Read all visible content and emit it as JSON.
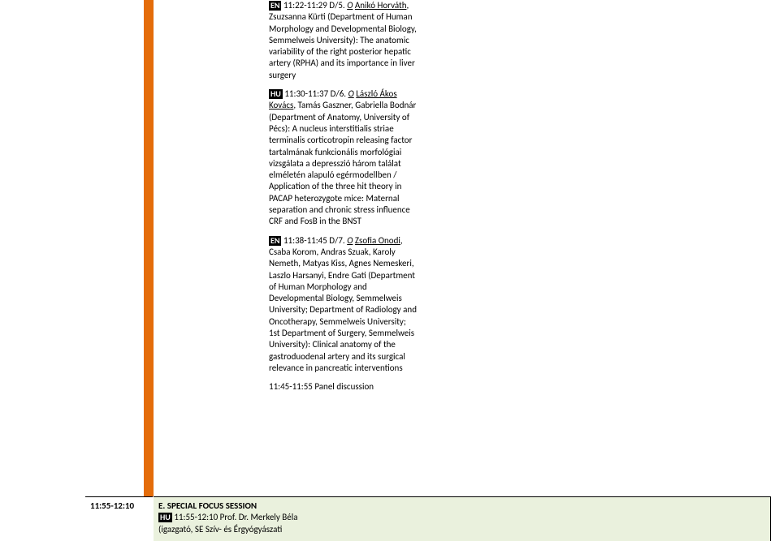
{
  "entry1": {
    "lang": "EN",
    "time_code": "11:22-11:29 D/5.",
    "author_lead_italic": "O",
    "author_lead_underline": "Anikó Horváth",
    "rest": ", Zsuzsanna Kürti (Department of Human Morphology and Developmental Biology, Semmelweis University): The anatomic variability of the right posterior hepatic artery (RPHA) and its importance in liver surgery"
  },
  "entry2": {
    "lang": "HU",
    "time_code": "11:30-11:37 D/6.",
    "author_lead_italic": "O",
    "author_lead_underline": "László Ákos Kovács",
    "rest": ", Tamás Gaszner, Gabriella Bodnár (Department of Anatomy, University of Pécs): A nucleus interstitialis striae terminalis corticotropin releasing factor tartalmának funkcionális morfológiai vizsgálata a depresszió három találat elméletén alapuló egérmodellben / Application of the three hit theory in PACAP heterozygote mice: Maternal separation and chronic stress influence CRF and FosB in the BNST"
  },
  "entry3": {
    "lang": "EN",
    "time_code": "11:38-11:45 D/7.",
    "author_lead_italic": "O",
    "author_lead_underline": "Zsofia Onodi",
    "rest": ", Csaba Korom, Andras Szuak, Karoly Nemeth, Matyas Kiss, Agnes Nemeskeri, Laszlo Harsanyi, Endre Gati (Department of Human Morphology and Developmental Biology, Semmelweis University; Department of Radiology and Oncotherapy, Semmelweis University; 1st Department of Surgery, Semmelweis University): Clinical anatomy of the gastroduodenal artery and its surgical relevance in pancreatic interventions"
  },
  "panel": "11:45-11:55 Panel discussion",
  "timeslot": "11:55-12:10",
  "session": {
    "title": "E. SPECIAL FOCUS SESSION",
    "lang": "HU",
    "line2": "11:55-12:10 Prof. Dr. Merkely Béla",
    "line3": "(igazgató, SE Szív- és Érgyógyászati"
  }
}
